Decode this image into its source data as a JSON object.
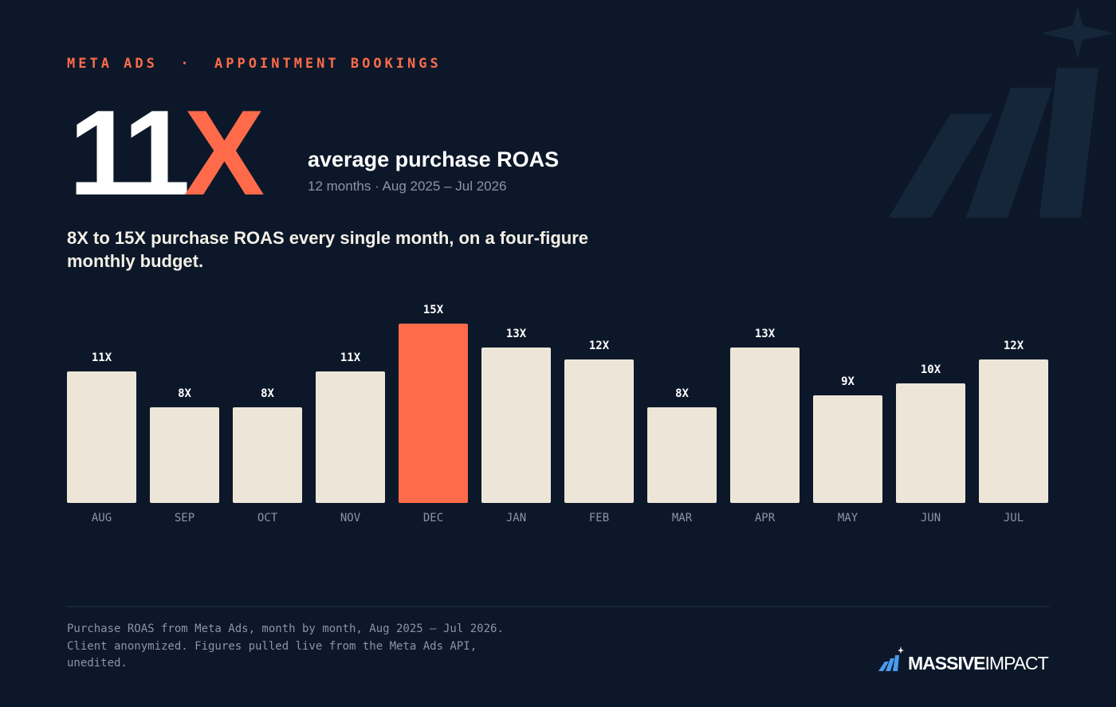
{
  "header": {
    "kicker": "META ADS  ·  APPOINTMENT BOOKINGS",
    "headline_number": "11",
    "headline_unit": "X",
    "headline_label": "average purchase ROAS",
    "headline_period": "12 months · Aug 2025 – Jul 2026",
    "summary": "8X to 15X purchase ROAS every single month, on a four-figure monthly budget."
  },
  "chart_data": {
    "type": "bar",
    "categories": [
      "AUG",
      "SEP",
      "OCT",
      "NOV",
      "DEC",
      "JAN",
      "FEB",
      "MAR",
      "APR",
      "MAY",
      "JUN",
      "JUL"
    ],
    "values": [
      11,
      8,
      8,
      11,
      15,
      13,
      12,
      8,
      13,
      9,
      10,
      12
    ],
    "value_labels": [
      "11X",
      "8X",
      "8X",
      "11X",
      "15X",
      "13X",
      "12X",
      "8X",
      "13X",
      "9X",
      "10X",
      "12X"
    ],
    "colors": [
      "#ede6d8",
      "#ede6d8",
      "#ede6d8",
      "#ede6d8",
      "#ff6b4a",
      "#ede6d8",
      "#ede6d8",
      "#ede6d8",
      "#ede6d8",
      "#ede6d8",
      "#ede6d8",
      "#ede6d8"
    ],
    "ylim": [
      0,
      16
    ]
  },
  "footer": {
    "note": [
      "Purchase ROAS from Meta Ads, month by month, Aug 2025 – Jul 2026.",
      "Client anonymized. Figures pulled live from the Meta Ads API,",
      "unedited."
    ],
    "logo_bold": "MASSIVE",
    "logo_light": "IMPACT"
  }
}
